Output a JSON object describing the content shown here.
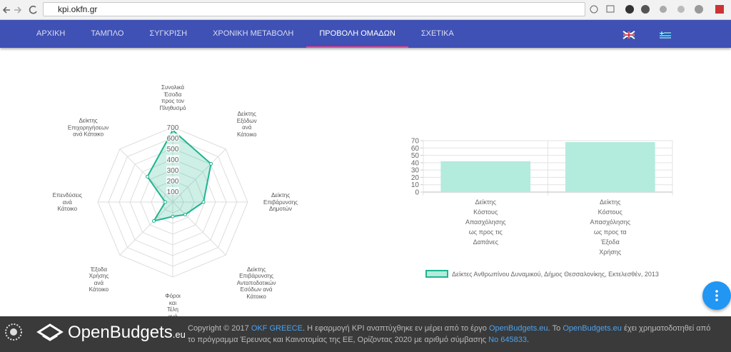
{
  "browser": {
    "url": "kpi.okfn.gr"
  },
  "nav": {
    "items": [
      "ΑΡΧΙΚΗ",
      "ΤΑΜΠΛΟ",
      "ΣΥΓΚΡΙΣΗ",
      "ΧΡΟΝΙΚΗ ΜΕΤΑΒΟΛΗ",
      "ΠΡΟΒΟΛΗ ΟΜΑΔΩΝ",
      "ΣΧΕΤΙΚΑ"
    ],
    "active": 4
  },
  "chart_data": [
    {
      "type": "radar",
      "categories": [
        "Συνολικά Έσοδα προς τον Πληθυσμό",
        "Δείκτης Εξόδων ανά Κάτοικο",
        "Δείκτης Επιβάρυνσης Δημοτών",
        "Δείκτης Επιβάρυνσης Ανταποδοτικών Εσόδων ανά Κάτοικο",
        "Φόροι και Τέλη ανά Κάτοικο",
        "Έξοδα Χρήσης ανά Κάτοικο",
        "Επενδύσεις ανά Κάτοικο",
        "Δείκτης Επιχορηγήσεων ανά Κάτοικο"
      ],
      "series": [
        {
          "color": "#1fb58f",
          "values": [
            670,
            505,
            287,
            165,
            135,
            250,
            70,
            335
          ]
        }
      ],
      "rlim": [
        0,
        700
      ],
      "rticks": [
        100,
        200,
        300,
        400,
        500,
        600,
        700
      ],
      "grid": true
    },
    {
      "type": "bar",
      "categories": [
        "Δείκτης Κόστους Απασχόλησης ως προς τις Δαπάνες",
        "Δείκτης Κόστους Απασχόλησης ως προς τα Έξοδα Χρήσης"
      ],
      "series": [
        {
          "name": "Δείκτες Ανθρωπίνου Δυναμικού, Δήμος Θεσσαλονίκης, Εκτελεσθέν, 2013",
          "color": "#b3ebdd",
          "values": [
            42,
            68
          ]
        }
      ],
      "ylim": [
        0,
        70
      ],
      "yticks": [
        0,
        10,
        20,
        30,
        40,
        50,
        60,
        70
      ],
      "grid": true,
      "legend": "bottom"
    }
  ],
  "footer": {
    "logo": "OpenBudgets",
    "logo_suffix": ".eu",
    "segments": [
      {
        "text": "Copyright © 2017 ",
        "link": false
      },
      {
        "text": "OKF GREECE",
        "link": true
      },
      {
        "text": ". Η εφαρμογή KPI αναπτύχθηκε εν μέρει από το έργο ",
        "link": false
      },
      {
        "text": "OpenBudgets.eu",
        "link": true
      },
      {
        "text": ". Το ",
        "link": false
      },
      {
        "text": "OpenBudgets.eu",
        "link": true
      },
      {
        "text": " έχει χρηματοδοτηθεί από το πρόγραμμα Έρευνας και Καινοτομίας της ΕΕ, Ορίζοντας 2020 με αριθμό σύμβασης ",
        "link": false
      },
      {
        "text": "No 645833",
        "link": true
      },
      {
        "text": ".",
        "link": false
      }
    ]
  }
}
